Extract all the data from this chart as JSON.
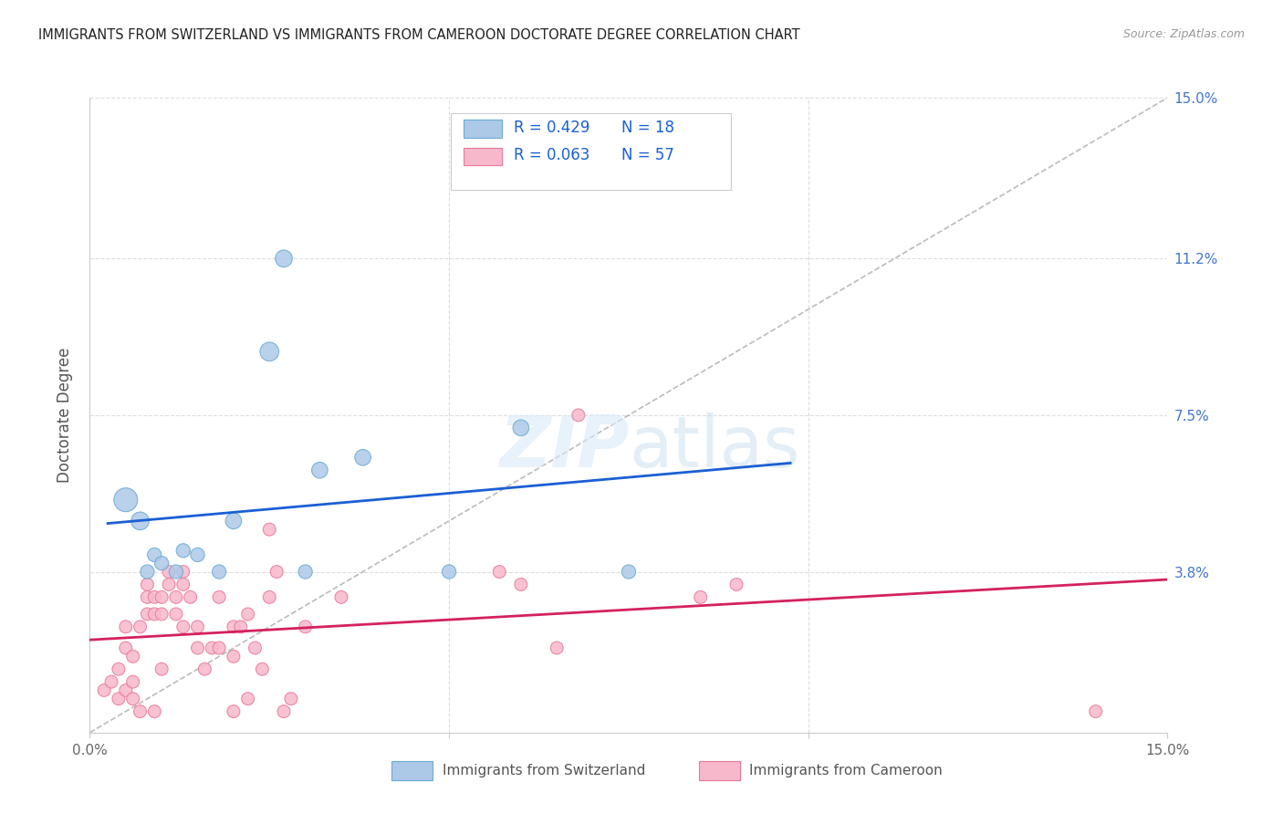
{
  "title": "IMMIGRANTS FROM SWITZERLAND VS IMMIGRANTS FROM CAMEROON DOCTORATE DEGREE CORRELATION CHART",
  "source": "Source: ZipAtlas.com",
  "ylabel": "Doctorate Degree",
  "xmin": 0.0,
  "xmax": 0.15,
  "ymin": 0.0,
  "ymax": 0.15,
  "diag_line_color": "#bbbbbb",
  "swiss_color": "#adc9e8",
  "swiss_edge_color": "#6aaad4",
  "cameroon_color": "#f7b8cb",
  "cameroon_edge_color": "#e8799a",
  "swiss_trend_color": "#1a5fd4",
  "cameroon_trend_color": "#d4215f",
  "legend_r_swiss": "R = 0.429",
  "legend_n_swiss": "N = 18",
  "legend_r_cameroon": "R = 0.063",
  "legend_n_cameroon": "N = 57",
  "watermark_zip": "ZIP",
  "watermark_atlas": "atlas",
  "right_tick_color": "#4477cc",
  "grid_color": "#dddddd",
  "swiss_points": [
    [
      0.005,
      0.055
    ],
    [
      0.007,
      0.05
    ],
    [
      0.008,
      0.038
    ],
    [
      0.009,
      0.042
    ],
    [
      0.01,
      0.04
    ],
    [
      0.012,
      0.038
    ],
    [
      0.013,
      0.043
    ],
    [
      0.015,
      0.042
    ],
    [
      0.018,
      0.038
    ],
    [
      0.02,
      0.05
    ],
    [
      0.025,
      0.09
    ],
    [
      0.027,
      0.112
    ],
    [
      0.03,
      0.038
    ],
    [
      0.032,
      0.062
    ],
    [
      0.038,
      0.065
    ],
    [
      0.05,
      0.038
    ],
    [
      0.06,
      0.072
    ],
    [
      0.075,
      0.038
    ]
  ],
  "cameroon_points": [
    [
      0.002,
      0.01
    ],
    [
      0.003,
      0.012
    ],
    [
      0.004,
      0.008
    ],
    [
      0.004,
      0.015
    ],
    [
      0.005,
      0.01
    ],
    [
      0.005,
      0.02
    ],
    [
      0.005,
      0.025
    ],
    [
      0.006,
      0.008
    ],
    [
      0.006,
      0.012
    ],
    [
      0.006,
      0.018
    ],
    [
      0.007,
      0.005
    ],
    [
      0.007,
      0.025
    ],
    [
      0.008,
      0.028
    ],
    [
      0.008,
      0.032
    ],
    [
      0.008,
      0.035
    ],
    [
      0.009,
      0.005
    ],
    [
      0.009,
      0.028
    ],
    [
      0.009,
      0.032
    ],
    [
      0.01,
      0.015
    ],
    [
      0.01,
      0.028
    ],
    [
      0.01,
      0.032
    ],
    [
      0.011,
      0.035
    ],
    [
      0.011,
      0.038
    ],
    [
      0.012,
      0.028
    ],
    [
      0.012,
      0.032
    ],
    [
      0.013,
      0.025
    ],
    [
      0.013,
      0.035
    ],
    [
      0.013,
      0.038
    ],
    [
      0.014,
      0.032
    ],
    [
      0.015,
      0.02
    ],
    [
      0.015,
      0.025
    ],
    [
      0.016,
      0.015
    ],
    [
      0.017,
      0.02
    ],
    [
      0.018,
      0.02
    ],
    [
      0.018,
      0.032
    ],
    [
      0.02,
      0.005
    ],
    [
      0.02,
      0.018
    ],
    [
      0.02,
      0.025
    ],
    [
      0.021,
      0.025
    ],
    [
      0.022,
      0.028
    ],
    [
      0.022,
      0.008
    ],
    [
      0.023,
      0.02
    ],
    [
      0.024,
      0.015
    ],
    [
      0.025,
      0.032
    ],
    [
      0.025,
      0.048
    ],
    [
      0.026,
      0.038
    ],
    [
      0.027,
      0.005
    ],
    [
      0.028,
      0.008
    ],
    [
      0.03,
      0.025
    ],
    [
      0.035,
      0.032
    ],
    [
      0.057,
      0.038
    ],
    [
      0.06,
      0.035
    ],
    [
      0.065,
      0.02
    ],
    [
      0.068,
      0.075
    ],
    [
      0.085,
      0.032
    ],
    [
      0.09,
      0.035
    ],
    [
      0.14,
      0.005
    ]
  ],
  "swiss_sizes": [
    350,
    200,
    120,
    120,
    120,
    120,
    120,
    120,
    120,
    160,
    220,
    180,
    120,
    160,
    160,
    120,
    160,
    120
  ],
  "cameroon_sizes": [
    100,
    100,
    100,
    100,
    100,
    100,
    100,
    100,
    100,
    100,
    100,
    100,
    100,
    100,
    100,
    100,
    100,
    100,
    100,
    100,
    100,
    100,
    100,
    100,
    100,
    100,
    100,
    100,
    100,
    100,
    100,
    100,
    100,
    100,
    100,
    100,
    100,
    100,
    100,
    100,
    100,
    100,
    100,
    100,
    100,
    100,
    100,
    100,
    100,
    100,
    100,
    100,
    100,
    100,
    100,
    100,
    100
  ]
}
